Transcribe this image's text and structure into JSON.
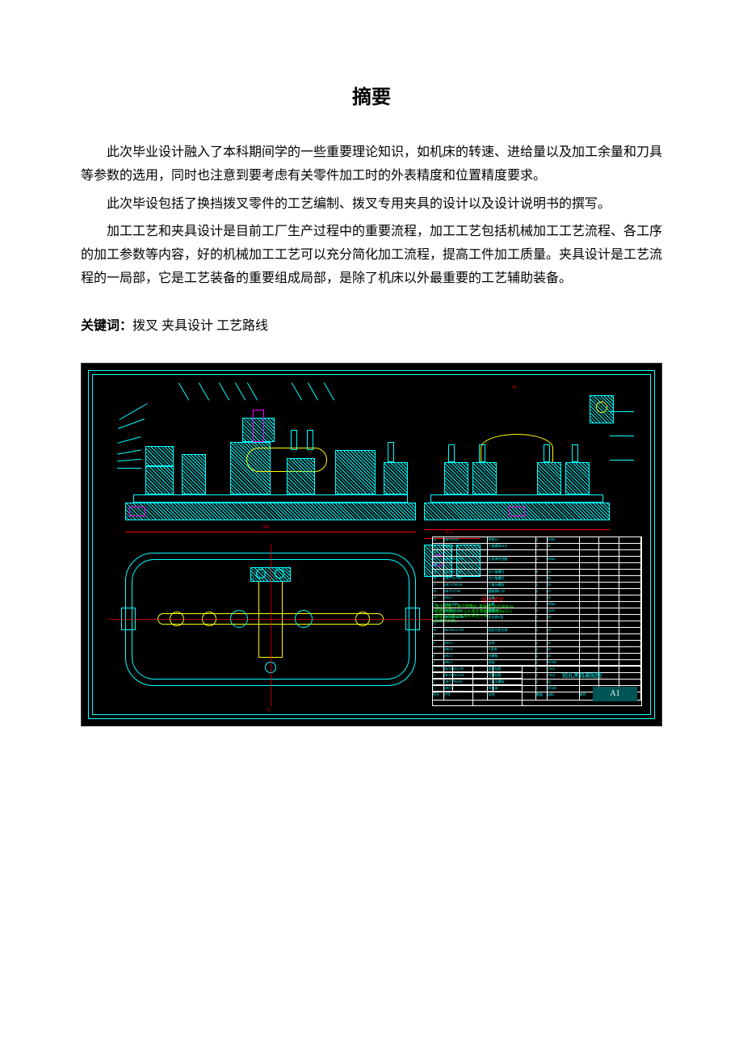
{
  "title": "摘要",
  "paragraphs": [
    "此次毕业设计融入了本科期间学的一些重要理论知识，如机床的转速、进给量以及加工余量和刀具等参数的选用，同时也注意到要考虑有关零件加工时的外表精度和位置精度要求。",
    "此次毕设包括了换挡拨叉零件的工艺编制、拨叉专用夹具的设计以及设计说明书的撰写。",
    "加工工艺和夹具设计是目前工厂生产过程中的重要流程，加工工艺包括机械加工工艺流程、各工序的加工参数等内容，好的机械加工工艺可以充分简化加工流程，提高工件加工质量。夹具设计是工艺流程的一局部，它是工艺装备的重要组成局部，是除了机床以外最重要的工艺辅助装备。"
  ],
  "keywords_label": "关键词：",
  "keywords_text": "拨叉 夹具设计 工艺路线",
  "cad": {
    "background": "#000000",
    "frame_color": "#00ffff",
    "part_color": "#00ffff",
    "hatch_color": "#00ffff",
    "dim_color": "#ff0000",
    "centerline_color": "#ffff00",
    "highlight_color": "#ff00ff",
    "note_color": "#00ff00",
    "title_block_line": "#ffffff",
    "tech_req_title": "技术要求",
    "sheet_label": "A1",
    "note_lines": [
      "1.未注倒角C1,未注圆角R3,其余按GB/T1804-m;",
      "2.调质处理HB220-250,未注表面粗糙度Ra12.5;",
      "3.装配时应保证各零件间无干涉;",
      "4.标准件外购。"
    ],
    "bom_rows": 24,
    "main_dim": "395",
    "bom_cells": [
      [
        "24",
        "GB/T93-87",
        "弹垫10",
        "4",
        "65Mn",
        "",
        "",
        ""
      ],
      [
        "23",
        "GB/T41-86",
        "六角螺母M10",
        "4",
        "35",
        "",
        "",
        ""
      ],
      [
        "22",
        "",
        "",
        "",
        "",
        "",
        "",
        ""
      ],
      [
        "21",
        "GB/T895.1-86",
        "孔用弹性挡圈",
        "2",
        "65Mn",
        "",
        "",
        ""
      ],
      [
        "20",
        "",
        "",
        "",
        "",
        "",
        "",
        ""
      ],
      [
        "19",
        "GB/T70.1-00",
        "内六角螺钉",
        "8",
        "35",
        "",
        "",
        ""
      ],
      [
        "18",
        "GB/T70.1-00",
        "内六角螺钉",
        "2",
        "35",
        "",
        "",
        ""
      ],
      [
        "17",
        "GB/T5782-00",
        "六角头螺栓",
        "2",
        "35",
        "",
        "",
        ""
      ],
      [
        "16",
        "GB/T117-00",
        "圆锥销6×30",
        "2",
        "35",
        "",
        "",
        ""
      ],
      [
        "15",
        "JJ82-1",
        "压板",
        "1",
        "45",
        "",
        "",
        ""
      ],
      [
        "14",
        "GB/T2089",
        "压簧",
        "1",
        "65Mn",
        "",
        "",
        ""
      ],
      [
        "13",
        "GB/T97.1-85",
        "垫圈10",
        "4",
        "Q235",
        "",
        "",
        ""
      ],
      [
        "12",
        "JB/T8014.2-99",
        "定位销A型",
        "1",
        "T8",
        "",
        "",
        ""
      ],
      [
        "11",
        "",
        "",
        "",
        "",
        "",
        "",
        ""
      ],
      [
        "10",
        "JB/T8014.1-99",
        "固定式定位销",
        "2",
        "T8",
        "",
        "",
        ""
      ],
      [
        "9",
        "",
        "",
        "",
        "",
        "",
        "",
        ""
      ],
      [
        "8",
        "JJ82-3",
        "支承",
        "1",
        "45",
        "",
        "",
        ""
      ],
      [
        "7",
        "JJ82-4",
        "V形块",
        "2",
        "45",
        "",
        "",
        ""
      ],
      [
        "6",
        "JJ82-1",
        "钻模板",
        "2",
        "45",
        "",
        "",
        ""
      ],
      [
        "5",
        "JJ82-5",
        "底板",
        "1",
        "HT200",
        "",
        "",
        ""
      ],
      [
        "4",
        "JB/T8045.1-99",
        "固定钻套",
        "2",
        "T10A",
        "",
        "",
        ""
      ],
      [
        "3",
        "JB/T8045.2-99",
        "可换钻套",
        "2",
        "T10A",
        "",
        "",
        ""
      ],
      [
        "2",
        "GB/T5782-00",
        "六角头螺栓",
        "2",
        "35",
        "",
        "",
        ""
      ],
      [
        "1",
        "JJ82-6",
        "夹具体",
        "1",
        "HT200",
        "",
        "",
        ""
      ]
    ],
    "bom_header": [
      "序号",
      "代号",
      "名称",
      "数量",
      "材料",
      "单件",
      "总计",
      "备注"
    ]
  }
}
